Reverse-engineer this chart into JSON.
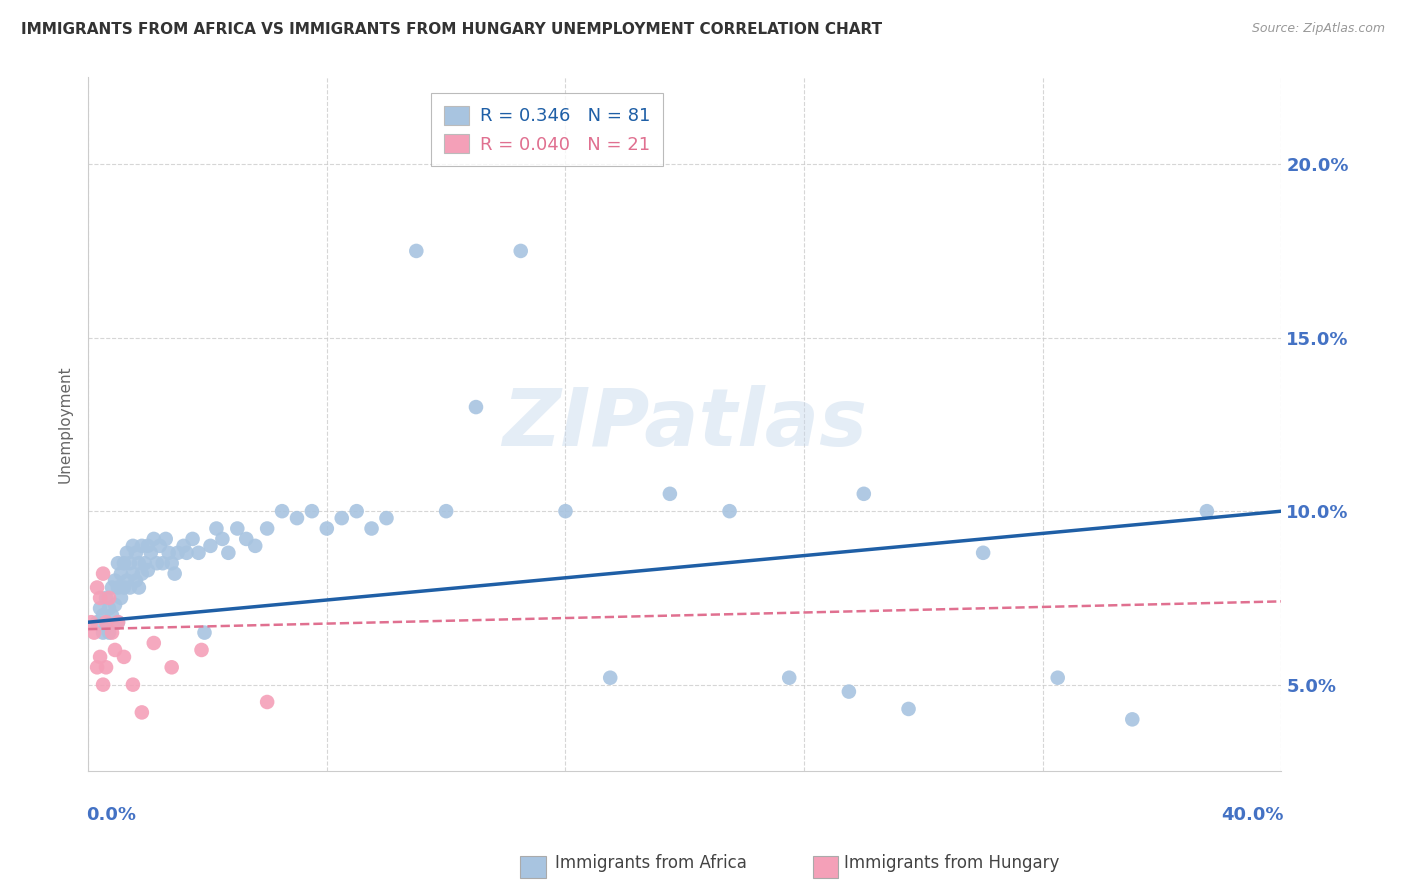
{
  "title": "IMMIGRANTS FROM AFRICA VS IMMIGRANTS FROM HUNGARY UNEMPLOYMENT CORRELATION CHART",
  "source": "Source: ZipAtlas.com",
  "ylabel": "Unemployment",
  "ytick_labels": [
    "5.0%",
    "10.0%",
    "15.0%",
    "20.0%"
  ],
  "ytick_values": [
    0.05,
    0.1,
    0.15,
    0.2
  ],
  "xlim": [
    0.0,
    0.4
  ],
  "ylim": [
    0.025,
    0.225
  ],
  "legend_africa_R": "0.346",
  "legend_africa_N": "81",
  "legend_hungary_R": "0.040",
  "legend_hungary_N": "21",
  "africa_color": "#a8c4e0",
  "hungary_color": "#f4a0b8",
  "africa_line_color": "#1f5fa6",
  "hungary_line_color": "#e07090",
  "title_color": "#333333",
  "axis_label_color": "#4472c4",
  "grid_color": "#cccccc",
  "africa_x": [
    0.003,
    0.004,
    0.005,
    0.005,
    0.006,
    0.006,
    0.007,
    0.007,
    0.008,
    0.008,
    0.009,
    0.009,
    0.01,
    0.01,
    0.01,
    0.011,
    0.011,
    0.012,
    0.012,
    0.013,
    0.013,
    0.014,
    0.014,
    0.015,
    0.015,
    0.016,
    0.016,
    0.017,
    0.017,
    0.018,
    0.018,
    0.019,
    0.02,
    0.02,
    0.021,
    0.022,
    0.023,
    0.024,
    0.025,
    0.026,
    0.027,
    0.028,
    0.029,
    0.03,
    0.032,
    0.033,
    0.035,
    0.037,
    0.039,
    0.041,
    0.043,
    0.045,
    0.047,
    0.05,
    0.053,
    0.056,
    0.06,
    0.065,
    0.07,
    0.075,
    0.08,
    0.085,
    0.09,
    0.095,
    0.1,
    0.11,
    0.12,
    0.13,
    0.145,
    0.16,
    0.175,
    0.195,
    0.215,
    0.235,
    0.255,
    0.275,
    0.3,
    0.325,
    0.35,
    0.375,
    0.26
  ],
  "africa_y": [
    0.068,
    0.072,
    0.065,
    0.07,
    0.075,
    0.068,
    0.072,
    0.065,
    0.078,
    0.07,
    0.08,
    0.073,
    0.085,
    0.078,
    0.068,
    0.082,
    0.075,
    0.085,
    0.078,
    0.088,
    0.08,
    0.085,
    0.078,
    0.09,
    0.082,
    0.088,
    0.08,
    0.085,
    0.078,
    0.09,
    0.082,
    0.085,
    0.09,
    0.083,
    0.088,
    0.092,
    0.085,
    0.09,
    0.085,
    0.092,
    0.088,
    0.085,
    0.082,
    0.088,
    0.09,
    0.088,
    0.092,
    0.088,
    0.065,
    0.09,
    0.095,
    0.092,
    0.088,
    0.095,
    0.092,
    0.09,
    0.095,
    0.1,
    0.098,
    0.1,
    0.095,
    0.098,
    0.1,
    0.095,
    0.098,
    0.175,
    0.1,
    0.13,
    0.175,
    0.1,
    0.052,
    0.105,
    0.1,
    0.052,
    0.048,
    0.043,
    0.088,
    0.052,
    0.04,
    0.1,
    0.105
  ],
  "hungary_x": [
    0.001,
    0.002,
    0.003,
    0.003,
    0.004,
    0.004,
    0.005,
    0.005,
    0.006,
    0.006,
    0.007,
    0.008,
    0.009,
    0.01,
    0.012,
    0.015,
    0.018,
    0.022,
    0.028,
    0.038,
    0.06
  ],
  "hungary_y": [
    0.068,
    0.065,
    0.078,
    0.055,
    0.075,
    0.058,
    0.082,
    0.05,
    0.068,
    0.055,
    0.075,
    0.065,
    0.06,
    0.068,
    0.058,
    0.05,
    0.042,
    0.062,
    0.055,
    0.06,
    0.045
  ],
  "africa_line_x0": 0.0,
  "africa_line_y0": 0.068,
  "africa_line_x1": 0.4,
  "africa_line_y1": 0.1,
  "hungary_line_x0": 0.0,
  "hungary_line_y0": 0.066,
  "hungary_line_x1": 0.4,
  "hungary_line_y1": 0.074
}
